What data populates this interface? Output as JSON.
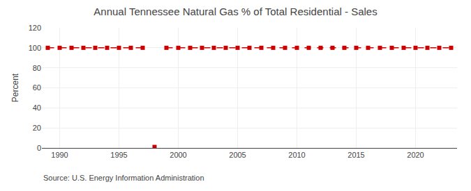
{
  "chart_data": {
    "type": "line",
    "title": "Annual Tennessee Natural Gas % of Total Residential - Sales",
    "ylabel": "Percent",
    "source": "Source: U.S. Energy Information Administration",
    "x": [
      1989,
      1990,
      1991,
      1992,
      1993,
      1994,
      1995,
      1996,
      1997,
      1998,
      1999,
      2000,
      2001,
      2002,
      2003,
      2004,
      2005,
      2006,
      2007,
      2008,
      2009,
      2010,
      2011,
      2012,
      2013,
      2014,
      2015,
      2016,
      2017,
      2018,
      2019,
      2020,
      2021,
      2022,
      2023
    ],
    "series": [
      {
        "color": "#cc0000",
        "marker": "square",
        "line_style": "dashed",
        "values": [
          100,
          100,
          100,
          100,
          100,
          100,
          100,
          100,
          100,
          null,
          100,
          100,
          100,
          100,
          100,
          100,
          100,
          100,
          100,
          100,
          100,
          100,
          100,
          100,
          100,
          100,
          100,
          100,
          100,
          100,
          100,
          100,
          100,
          100,
          100
        ]
      },
      {
        "color": "#cc0000",
        "marker": "square",
        "line_style": "none",
        "values": [
          null,
          null,
          null,
          null,
          null,
          null,
          null,
          null,
          null,
          1,
          null,
          null,
          null,
          null,
          null,
          null,
          null,
          null,
          null,
          null,
          null,
          null,
          null,
          null,
          null,
          null,
          null,
          null,
          null,
          null,
          null,
          null,
          null,
          null,
          null
        ]
      }
    ],
    "xlim": [
      1988.5,
      2023.5
    ],
    "ylim": [
      0,
      120
    ],
    "xticks": [
      1990,
      1995,
      2000,
      2005,
      2010,
      2015,
      2020
    ],
    "yticks": [
      0,
      20,
      40,
      60,
      80,
      100,
      120
    ],
    "grid": true
  }
}
